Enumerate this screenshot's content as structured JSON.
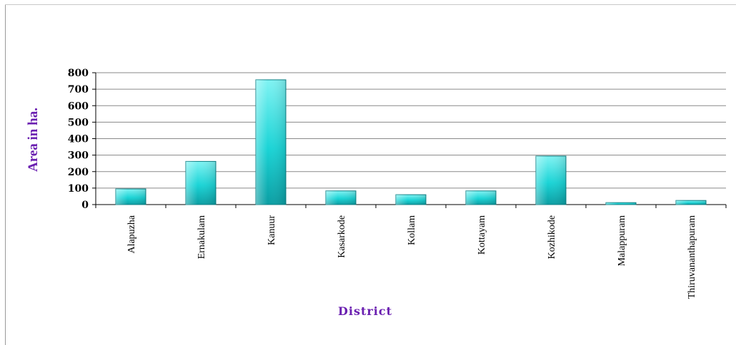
{
  "chart_data": {
    "type": "bar",
    "title": "",
    "xlabel": "District",
    "ylabel": "Area in ha.",
    "categories": [
      "Alapuzha",
      "Ernakulam",
      "Kanuur",
      "Kasarkode",
      "Kollam",
      "Kottayam",
      "Kozhikode",
      "Malappuram",
      "Thiruvananthapuram"
    ],
    "values": [
      95,
      262,
      757,
      83,
      60,
      83,
      294,
      12,
      25
    ],
    "ylim": [
      0,
      800
    ],
    "yticks": [
      0,
      100,
      200,
      300,
      400,
      500,
      600,
      700,
      800
    ],
    "grid": true,
    "legend": "none",
    "colors": {
      "bar_top": "#7ff3f3",
      "bar_mid": "#1ad4d6",
      "bar_bottom": "#0a9ea3",
      "bar_edge": "#0b7f84",
      "label_color": "#6a1fb0",
      "grid_color": "#8a8a8a"
    }
  }
}
